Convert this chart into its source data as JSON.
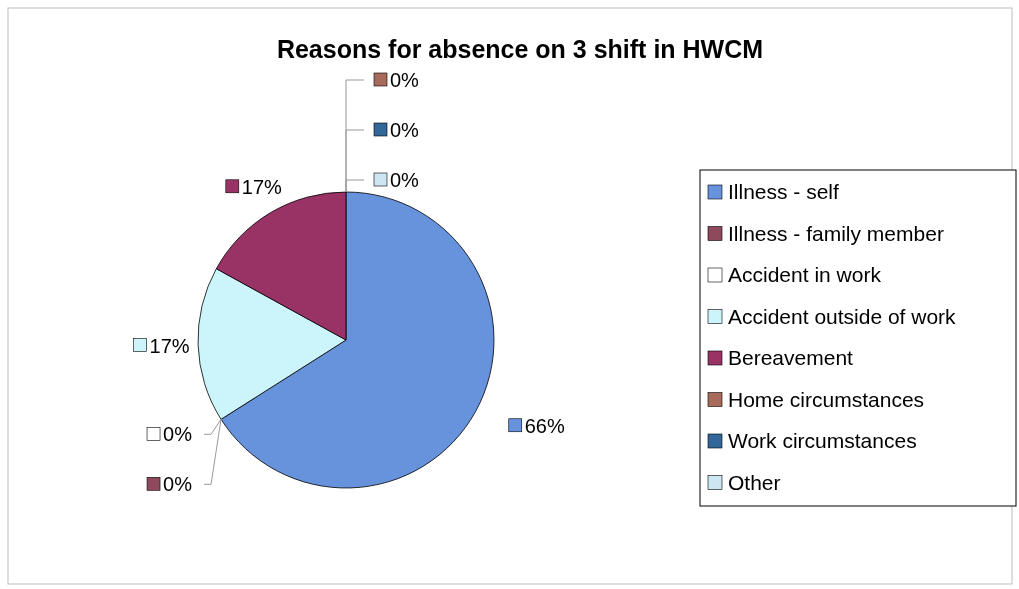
{
  "chart_data": {
    "type": "pie",
    "title": "Reasons for absence on 3 shift in HWCM",
    "categories": [
      "Illness - self",
      "Illness - family member",
      "Accident in work",
      "Accident outside of work",
      "Bereavement",
      "Home circumstances",
      "Work circumstances",
      "Other"
    ],
    "values": [
      66,
      0,
      0,
      17,
      17,
      0,
      0,
      0
    ],
    "value_labels": [
      "66%",
      "0%",
      "0%",
      "17%",
      "17%",
      "0%",
      "0%",
      "0%"
    ],
    "colors": [
      "#6693dc",
      "#8e4a5c",
      "#ffffff",
      "#ccf5fb",
      "#993366",
      "#a86a5a",
      "#336699",
      "#cce6f2"
    ],
    "legend": "right"
  }
}
